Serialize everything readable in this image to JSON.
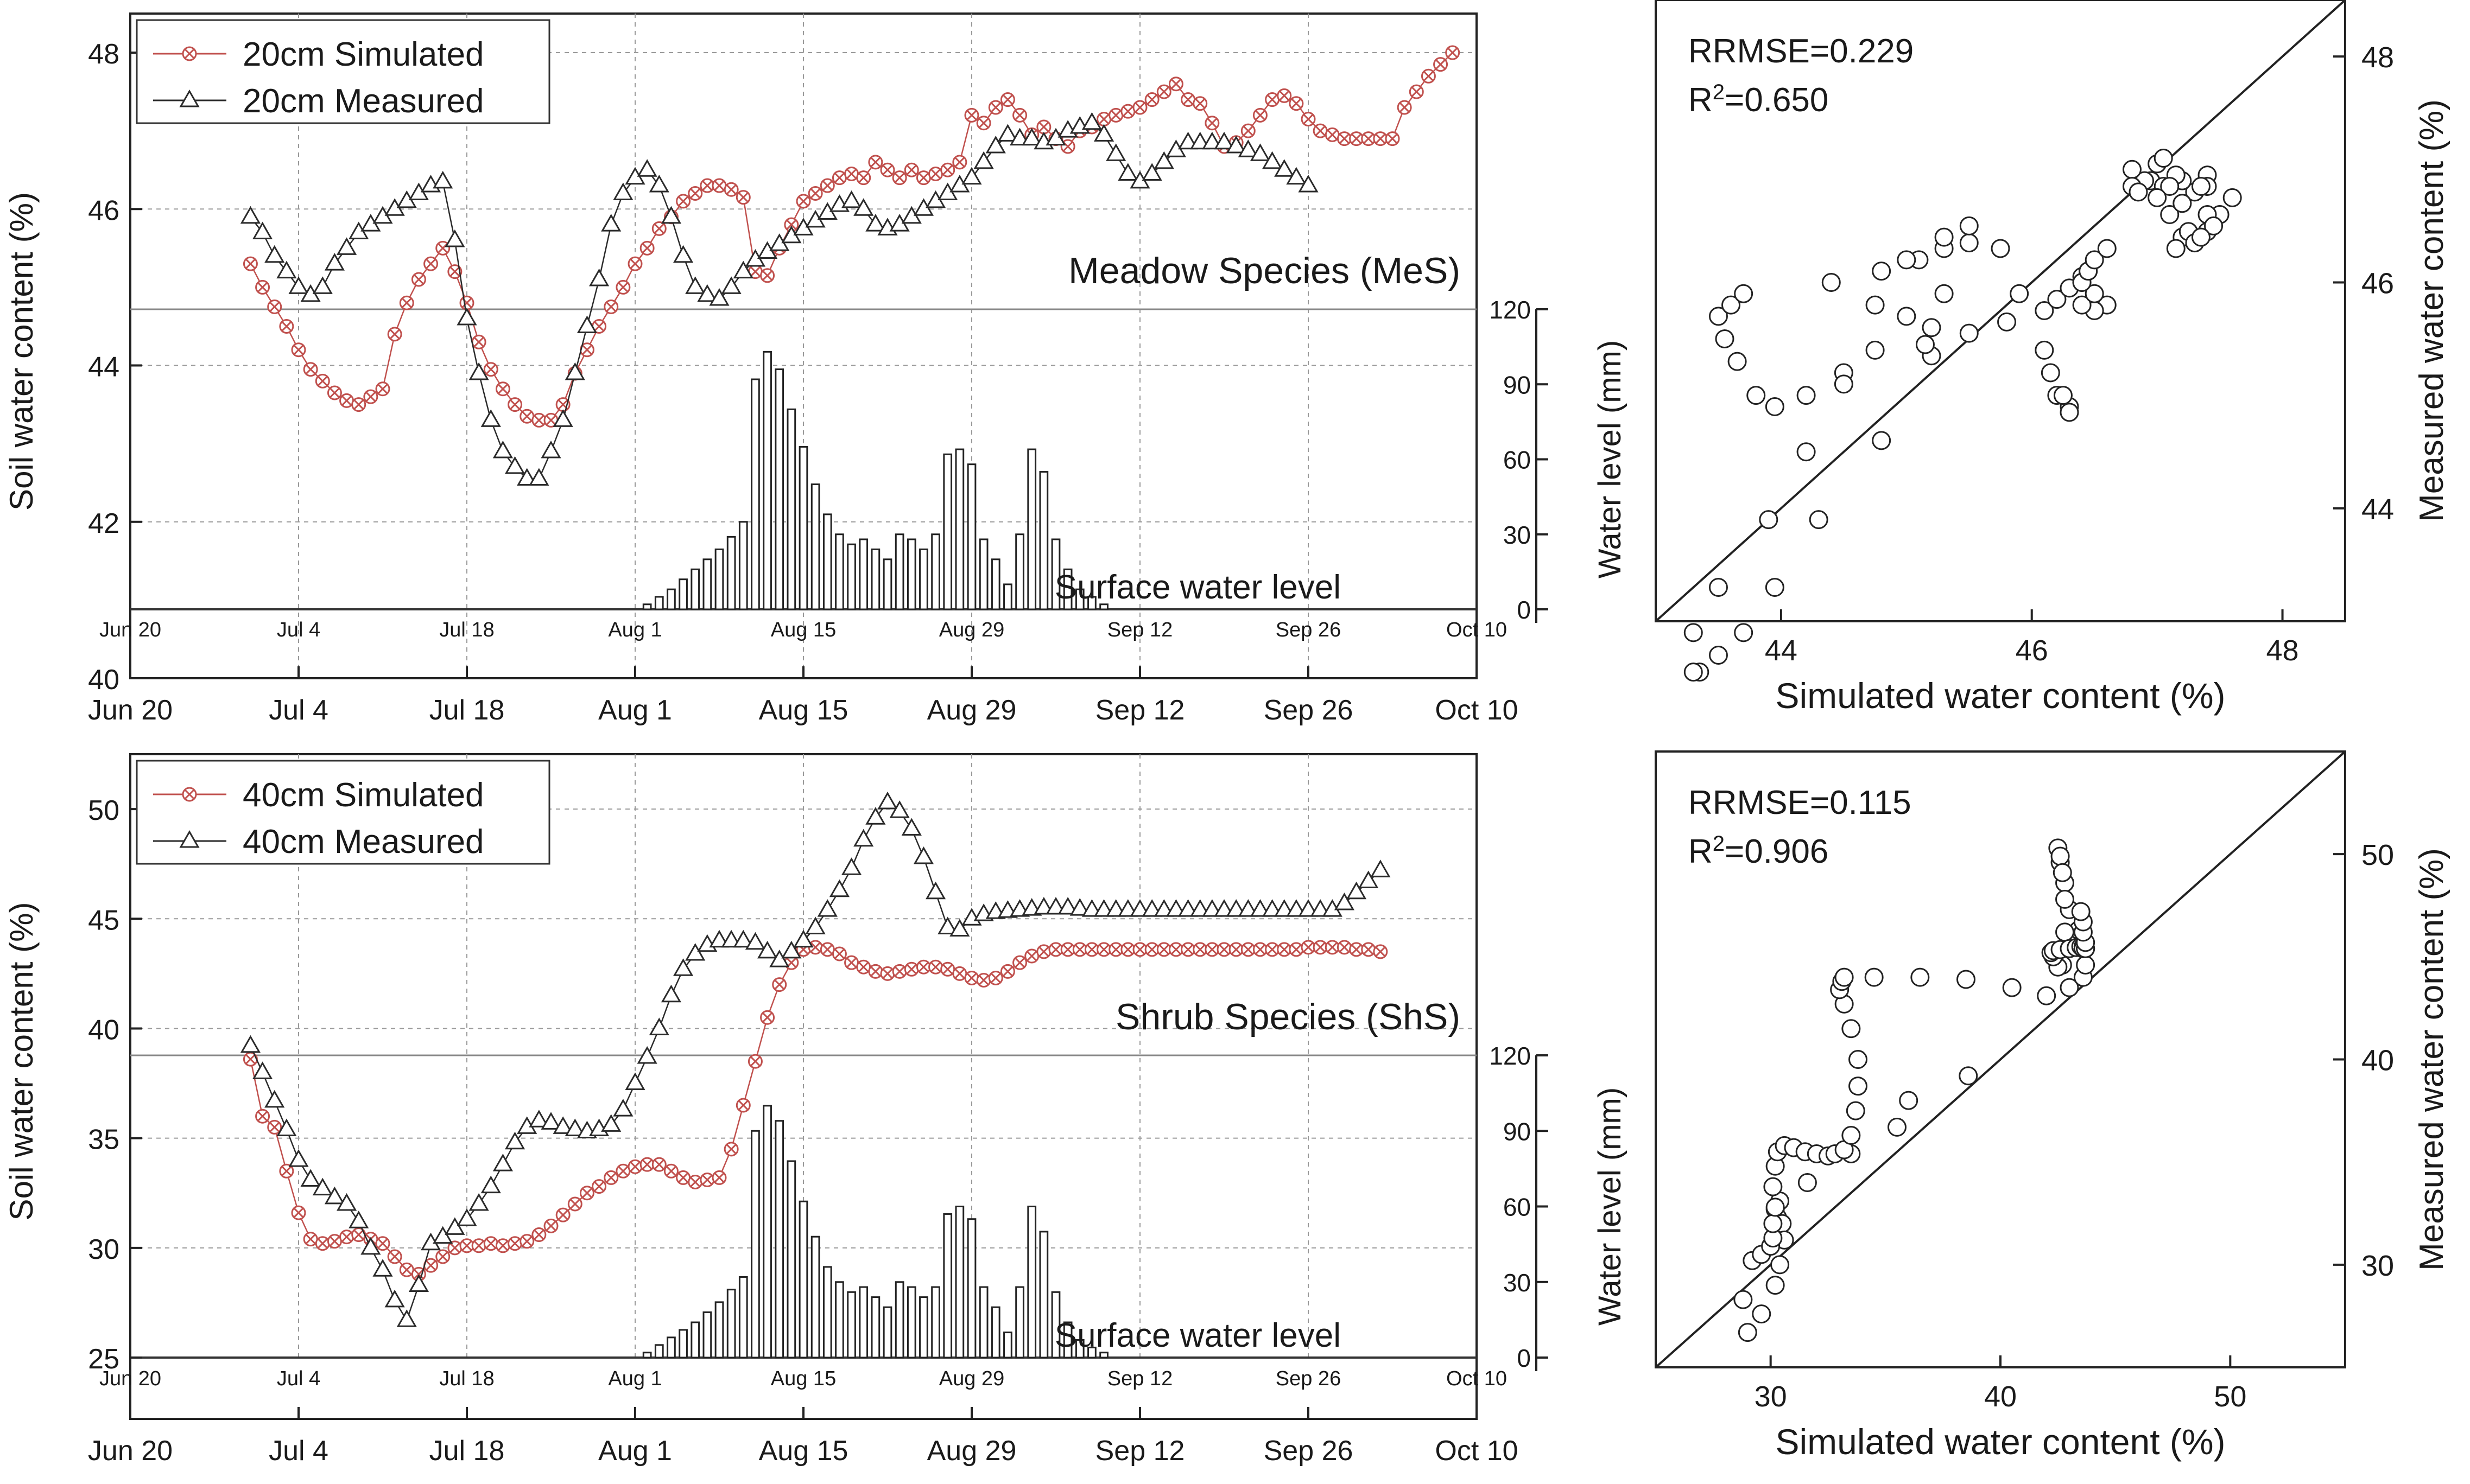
{
  "chart_data": [
    {
      "id": "meadow-timeseries",
      "type": "line",
      "panel_label": "Meadow Species (MeS)",
      "inset_label": "Surface water level",
      "xlabel": "",
      "ylabel": "Soil water content (%)",
      "y2label": "Water level (mm)",
      "x_tick_labels": [
        "Jun 20",
        "Jul 4",
        "Jul 18",
        "Aug 1",
        "Aug 15",
        "Aug 29",
        "Sep 12",
        "Sep 26",
        "Oct 10"
      ],
      "x_range_days": [
        0,
        112
      ],
      "ylim": [
        40,
        48.5
      ],
      "y_ticks": [
        "40",
        "42",
        "44",
        "46",
        "48"
      ],
      "y2_ticks": [
        "0",
        "30",
        "60",
        "90",
        "120"
      ],
      "grid": true,
      "legend_position": "top-left",
      "series": [
        {
          "name": "20cm Simulated",
          "marker": "x-circle",
          "color": "#c0504d",
          "start_day": 10,
          "step_days": 1,
          "values": [
            45.3,
            45.0,
            44.75,
            44.5,
            44.2,
            43.95,
            43.8,
            43.65,
            43.55,
            43.5,
            43.6,
            43.7,
            44.4,
            44.8,
            45.1,
            45.3,
            45.5,
            45.2,
            44.8,
            44.3,
            43.95,
            43.7,
            43.5,
            43.35,
            43.3,
            43.3,
            43.5,
            43.9,
            44.2,
            44.5,
            44.75,
            45.0,
            45.3,
            45.5,
            45.75,
            45.9,
            46.1,
            46.2,
            46.3,
            46.3,
            46.25,
            46.15,
            45.2,
            45.15,
            45.5,
            45.8,
            46.1,
            46.2,
            46.3,
            46.4,
            46.45,
            46.4,
            46.6,
            46.5,
            46.4,
            46.5,
            46.4,
            46.45,
            46.5,
            46.6,
            47.2,
            47.1,
            47.3,
            47.4,
            47.2,
            46.95,
            47.05,
            46.9,
            46.8,
            47.0,
            47.05,
            47.15,
            47.2,
            47.25,
            47.3,
            47.4,
            47.5,
            47.6,
            47.4,
            47.35,
            47.1,
            46.8,
            46.85,
            47.0,
            47.2,
            47.4,
            47.45,
            47.35,
            47.15,
            47.0,
            46.95,
            46.9,
            46.9,
            46.9,
            46.9,
            46.9,
            47.3,
            47.5,
            47.7,
            47.85,
            48.0
          ]
        },
        {
          "name": "20cm Measured",
          "marker": "triangle",
          "color": "#2b2b2b",
          "start_day": 10,
          "step_days": 1,
          "values": [
            45.9,
            45.7,
            45.4,
            45.2,
            45.0,
            44.9,
            45.0,
            45.3,
            45.5,
            45.7,
            45.8,
            45.9,
            46.0,
            46.1,
            46.2,
            46.3,
            46.35,
            45.6,
            44.6,
            43.9,
            43.3,
            42.9,
            42.7,
            42.55,
            42.55,
            42.9,
            43.3,
            43.9,
            44.5,
            45.1,
            45.8,
            46.2,
            46.4,
            46.5,
            46.3,
            45.9,
            45.4,
            45.0,
            44.9,
            44.85,
            45.0,
            45.2,
            45.35,
            45.45,
            45.55,
            45.65,
            45.75,
            45.85,
            45.95,
            46.05,
            46.1,
            46.0,
            45.8,
            45.75,
            45.8,
            45.9,
            46.0,
            46.1,
            46.2,
            46.3,
            46.4,
            46.6,
            46.8,
            46.95,
            46.9,
            46.9,
            46.85,
            46.9,
            47.0,
            47.05,
            47.1,
            46.95,
            46.7,
            46.45,
            46.35,
            46.45,
            46.6,
            46.75,
            46.85,
            46.85,
            46.85,
            46.85,
            46.8,
            46.75,
            46.7,
            46.6,
            46.5,
            46.4,
            46.3
          ]
        },
        {
          "name": "Surface water level",
          "chart_type": "bar",
          "axis": "y2",
          "start_day": 42,
          "step_days": 1,
          "values": [
            0,
            2,
            5,
            8,
            12,
            16,
            20,
            24,
            29,
            35,
            92,
            103,
            96,
            80,
            65,
            50,
            38,
            30,
            26,
            28,
            24,
            20,
            30,
            28,
            24,
            30,
            62,
            64,
            58,
            28,
            20,
            10,
            30,
            64,
            55,
            28,
            16,
            8,
            5,
            2
          ]
        }
      ]
    },
    {
      "id": "meadow-scatter",
      "type": "scatter",
      "annotations": [
        "RRMSE=0.229",
        "R2=0.650"
      ],
      "xlabel": "Simulated water content (%)",
      "ylabel": "Measured water content (%)",
      "xlim": [
        43,
        48.5
      ],
      "ylim": [
        43,
        48.5
      ],
      "x_ticks": [
        "44",
        "46",
        "48"
      ],
      "y_ticks": [
        "44",
        "46",
        "48"
      ],
      "reference_line": "1:1",
      "note": "points pair each simulated value with the measured value of the same day"
    },
    {
      "id": "shrub-timeseries",
      "type": "line",
      "panel_label": "Shrub Species (ShS)",
      "inset_label": "Surface water level",
      "xlabel": "",
      "ylabel": "Soil water content (%)",
      "y2label": "Water level (mm)",
      "x_tick_labels": [
        "Jun 20",
        "Jul 4",
        "Jul 18",
        "Aug 1",
        "Aug 15",
        "Aug 29",
        "Sep 12",
        "Sep 26",
        "Oct 10"
      ],
      "x_range_days": [
        0,
        112
      ],
      "ylim": [
        25,
        52.5
      ],
      "y_ticks": [
        "25",
        "30",
        "35",
        "40",
        "45",
        "50"
      ],
      "y2_ticks": [
        "0",
        "30",
        "60",
        "90",
        "120"
      ],
      "grid": true,
      "legend_position": "top-left",
      "series": [
        {
          "name": "40cm Simulated",
          "marker": "x-circle",
          "color": "#c0504d",
          "start_day": 10,
          "step_days": 1,
          "values": [
            38.6,
            36.0,
            35.5,
            33.5,
            31.6,
            30.4,
            30.2,
            30.3,
            30.5,
            30.6,
            30.4,
            30.2,
            29.6,
            29.0,
            28.8,
            29.2,
            29.6,
            30.0,
            30.1,
            30.1,
            30.2,
            30.1,
            30.2,
            30.3,
            30.6,
            31.0,
            31.5,
            32.0,
            32.5,
            32.8,
            33.2,
            33.5,
            33.7,
            33.8,
            33.8,
            33.5,
            33.2,
            33.0,
            33.1,
            33.2,
            34.5,
            36.5,
            38.5,
            40.5,
            42.0,
            43.0,
            43.6,
            43.7,
            43.6,
            43.4,
            43.0,
            42.8,
            42.6,
            42.5,
            42.6,
            42.7,
            42.8,
            42.8,
            42.7,
            42.5,
            42.3,
            42.2,
            42.3,
            42.6,
            43.0,
            43.3,
            43.5,
            43.6,
            43.6,
            43.6,
            43.6,
            43.6,
            43.6,
            43.6,
            43.6,
            43.6,
            43.6,
            43.6,
            43.6,
            43.6,
            43.6,
            43.6,
            43.6,
            43.6,
            43.6,
            43.6,
            43.6,
            43.6,
            43.7,
            43.7,
            43.7,
            43.7,
            43.6,
            43.6,
            43.5
          ]
        },
        {
          "name": "40cm Measured",
          "marker": "triangle",
          "color": "#2b2b2b",
          "start_day": 10,
          "step_days": 1,
          "values": [
            39.2,
            38.0,
            36.7,
            35.4,
            34.0,
            33.1,
            32.7,
            32.3,
            32.0,
            31.2,
            30.0,
            29.0,
            27.6,
            26.7,
            28.3,
            30.2,
            30.5,
            30.9,
            31.3,
            32.0,
            32.8,
            33.8,
            34.8,
            35.5,
            35.8,
            35.7,
            35.5,
            35.4,
            35.3,
            35.4,
            35.6,
            36.3,
            37.5,
            38.7,
            40.0,
            41.5,
            42.7,
            43.4,
            43.8,
            44.0,
            44.0,
            44.0,
            43.9,
            43.5,
            43.1,
            43.5,
            44.0,
            44.6,
            45.4,
            46.3,
            47.3,
            48.6,
            49.6,
            50.3,
            49.9,
            49.1,
            47.8,
            46.2,
            44.6,
            44.5,
            45.0,
            45.2,
            45.3,
            45.35,
            45.4,
            45.45,
            45.5,
            45.5,
            45.5,
            45.45,
            45.4,
            45.4,
            45.4,
            45.4,
            45.4,
            45.4,
            45.4,
            45.4,
            45.4,
            45.4,
            45.4,
            45.4,
            45.4,
            45.4,
            45.4,
            45.4,
            45.4,
            45.4,
            45.4,
            45.4,
            45.4,
            45.7,
            46.2,
            46.7,
            47.2
          ]
        },
        {
          "name": "Surface water level",
          "chart_type": "bar",
          "axis": "y2",
          "start_day": 42,
          "step_days": 1,
          "values": [
            0,
            2,
            5,
            8,
            11,
            14,
            18,
            22,
            27,
            32,
            90,
            100,
            94,
            78,
            62,
            48,
            36,
            30,
            26,
            28,
            24,
            20,
            30,
            28,
            24,
            28,
            57,
            60,
            55,
            28,
            20,
            10,
            28,
            60,
            50,
            26,
            14,
            7,
            4,
            2
          ]
        }
      ]
    },
    {
      "id": "shrub-scatter",
      "type": "scatter",
      "annotations": [
        "RRMSE=0.115",
        "R2=0.906"
      ],
      "xlabel": "Simulated water content (%)",
      "ylabel": "Measured water content (%)",
      "xlim": [
        25,
        55
      ],
      "ylim": [
        25,
        55
      ],
      "x_ticks": [
        "30",
        "40",
        "50"
      ],
      "y_ticks": [
        "30",
        "40",
        "50"
      ],
      "reference_line": "1:1",
      "note": "points pair each simulated value with the measured value of the same day"
    }
  ],
  "colors": {
    "simulated": "#c0504d",
    "measured": "#2b2b2b",
    "grid": "#9a9a9a"
  }
}
